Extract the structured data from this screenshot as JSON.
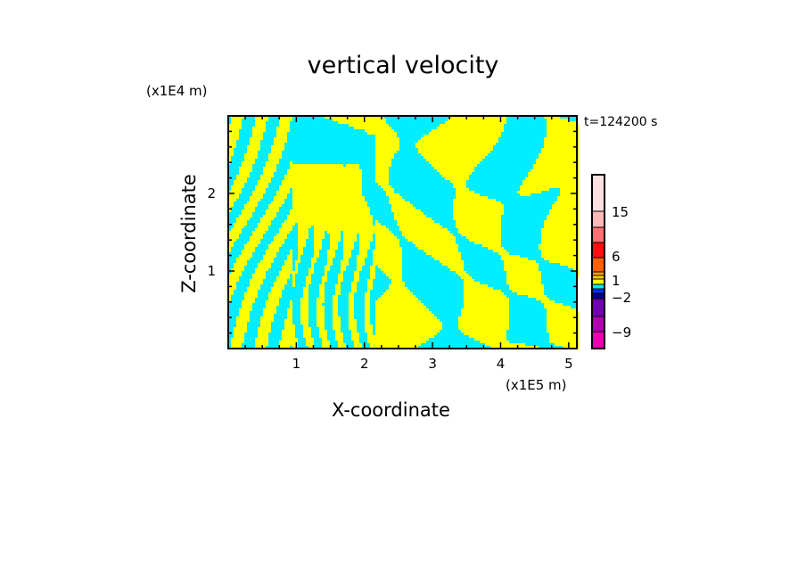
{
  "chart_data": {
    "type": "heatmap",
    "title": "vertical velocity",
    "xlabel": "X-coordinate",
    "ylabel": "Z-coordinate",
    "x_unit_label": "(x1E5 m)",
    "y_unit_label": "(x1E4 m)",
    "time_label": "t=124200 s",
    "xlim": [
      0,
      5.12
    ],
    "ylim": [
      0,
      3.0
    ],
    "x_ticks": [
      1,
      2,
      3,
      4,
      5
    ],
    "y_ticks": [
      1,
      2
    ],
    "x_tick_labels": [
      "1",
      "2",
      "3",
      "4",
      "5"
    ],
    "y_tick_labels": [
      "1",
      "2"
    ],
    "field_colors_present": [
      "#ffff00",
      "#00eeff"
    ],
    "colorbar": {
      "colors": [
        "#ffe0e0",
        "#ffb8b8",
        "#ff7070",
        "#ff1010",
        "#ff6000",
        "#ffa000",
        "#ffd000",
        "#ffff00",
        "#00eeff",
        "#0030ff",
        "#000090",
        "#7000b0",
        "#b000b0",
        "#e800b0"
      ],
      "labels": [
        {
          "text": "15",
          "value": 15
        },
        {
          "text": "6",
          "value": 6
        },
        {
          "text": "1",
          "value": 1
        },
        {
          "text": "−2",
          "value": -2
        },
        {
          "text": "−9",
          "value": -9
        }
      ]
    }
  }
}
